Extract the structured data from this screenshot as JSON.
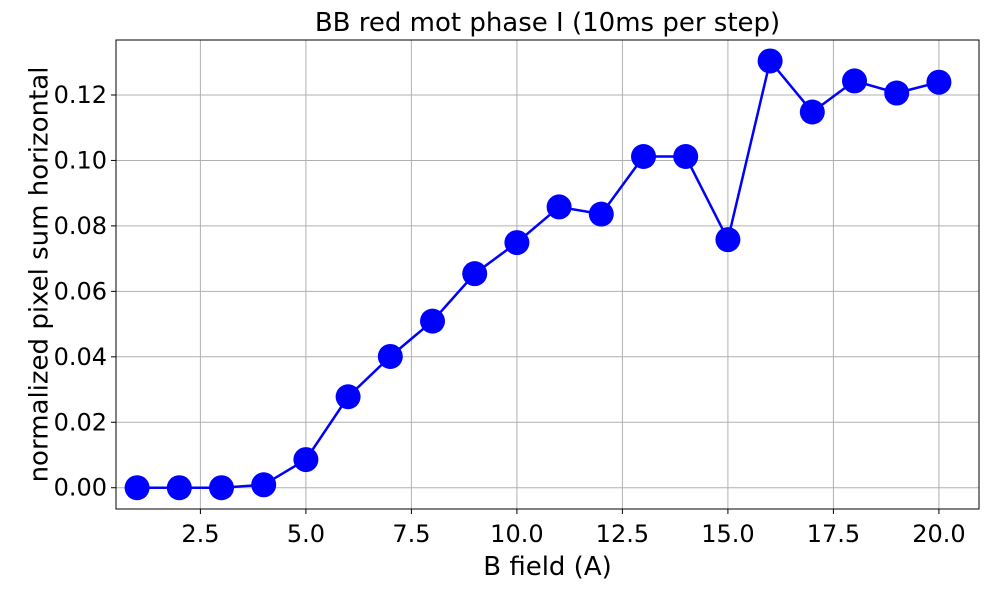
{
  "chart_data": {
    "type": "line",
    "title": "BB red mot phase I (10ms per step)",
    "xlabel": "B field (A)",
    "ylabel": "normalized pixel sum horizontal",
    "xlim": [
      0.5,
      20.95
    ],
    "ylim": [
      -0.0065,
      0.1368
    ],
    "xticks": [
      2.5,
      5.0,
      7.5,
      10.0,
      12.5,
      15.0,
      17.5,
      20.0
    ],
    "xtick_labels": [
      "2.5",
      "5.0",
      "7.5",
      "10.0",
      "12.5",
      "15.0",
      "17.5",
      "20.0"
    ],
    "yticks": [
      0.0,
      0.02,
      0.04,
      0.06,
      0.08,
      0.1,
      0.12
    ],
    "ytick_labels": [
      "0.00",
      "0.02",
      "0.04",
      "0.06",
      "0.08",
      "0.10",
      "0.12"
    ],
    "grid": true,
    "series": [
      {
        "color": "#0000ff",
        "marker": "circle",
        "x": [
          1,
          2,
          3,
          4,
          5,
          6,
          7,
          8,
          9,
          10,
          11,
          12,
          13,
          14,
          15,
          16,
          17,
          18,
          19,
          20
        ],
        "y": [
          0.0,
          0.0,
          0.0,
          0.0009,
          0.0086,
          0.0278,
          0.0401,
          0.0509,
          0.0654,
          0.0749,
          0.0858,
          0.0836,
          0.1012,
          0.1012,
          0.0758,
          0.1304,
          0.1148,
          0.1243,
          0.1206,
          0.1239
        ]
      }
    ]
  }
}
